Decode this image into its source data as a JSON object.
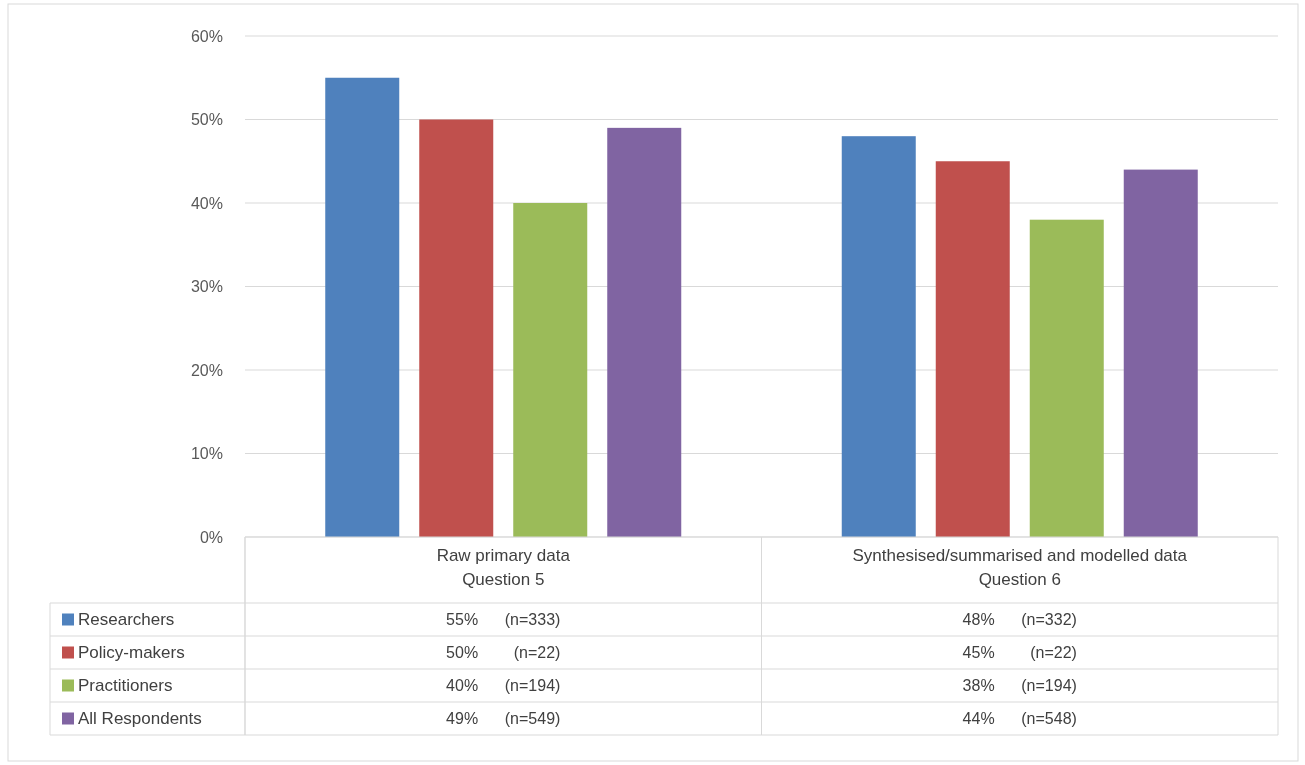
{
  "chart_data": {
    "type": "bar",
    "categories": [
      "Raw primary data\nQuestion 5",
      "Synthesised/summarised and modelled data\nQuestion 6"
    ],
    "series": [
      {
        "name": "Researchers",
        "color": "#4f81bd",
        "values": [
          55,
          48
        ],
        "value_labels": [
          "55%      (n=333)",
          "48%      (n=332)"
        ]
      },
      {
        "name": "Policy-makers",
        "color": "#c0504d",
        "values": [
          50,
          45
        ],
        "value_labels": [
          "50%        (n=22)",
          "45%        (n=22)"
        ]
      },
      {
        "name": "Practitioners",
        "color": "#9bbb59",
        "values": [
          40,
          38
        ],
        "value_labels": [
          "40%      (n=194)",
          "38%      (n=194)"
        ]
      },
      {
        "name": "All Respondents",
        "color": "#8064a2",
        "values": [
          49,
          44
        ],
        "value_labels": [
          "49%      (n=549)",
          "44%      (n=548)"
        ]
      }
    ],
    "ylim": [
      0,
      60
    ],
    "yticks": [
      {
        "value": 0,
        "label": "0%"
      },
      {
        "value": 10,
        "label": "10%"
      },
      {
        "value": 20,
        "label": "20%"
      },
      {
        "value": 30,
        "label": "30%"
      },
      {
        "value": 40,
        "label": "40%"
      },
      {
        "value": 50,
        "label": "50%"
      },
      {
        "value": 60,
        "label": "60%"
      }
    ],
    "grid": "y",
    "legend": "bottom"
  }
}
